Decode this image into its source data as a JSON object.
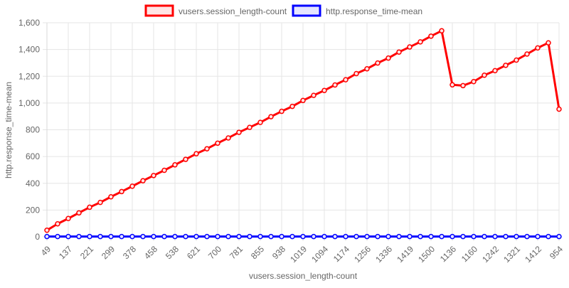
{
  "chart_data": {
    "type": "line",
    "title": "",
    "xlabel": "vusers.session_length-count",
    "ylabel": "http.response_time-mean",
    "ylim": [
      0,
      1600
    ],
    "yticks": [
      0,
      200,
      400,
      600,
      800,
      1000,
      1200,
      1400,
      1600
    ],
    "ytick_labels": [
      "0",
      "200",
      "400",
      "600",
      "800",
      "1,000",
      "1,200",
      "1,400",
      "1,600"
    ],
    "grid": true,
    "legend_position": "top-center",
    "categories": [
      "49",
      "97",
      "137",
      "179",
      "221",
      "257",
      "299",
      "338",
      "378",
      "419",
      "458",
      "497",
      "538",
      "579",
      "621",
      "658",
      "700",
      "739",
      "781",
      "818",
      "855",
      "898",
      "938",
      "975",
      "1019",
      "1057",
      "1094",
      "1135",
      "1174",
      "1220",
      "1256",
      "1299",
      "1336",
      "1381",
      "1419",
      "1457",
      "1500",
      "1540",
      "1136",
      "1130",
      "1160",
      "1208",
      "1242",
      "1282",
      "1321",
      "1366",
      "1412",
      "1450",
      "954"
    ],
    "tick_labels": [
      "49",
      "137",
      "221",
      "299",
      "378",
      "458",
      "538",
      "621",
      "700",
      "781",
      "855",
      "938",
      "1019",
      "1094",
      "1174",
      "1256",
      "1336",
      "1419",
      "1500",
      "1136",
      "1160",
      "1242",
      "1321",
      "1412",
      "954"
    ],
    "series": [
      {
        "name": "vusers.session_length-count",
        "color": "#ff0000",
        "fill": "#ffe5e5",
        "values": [
          49,
          97,
          137,
          179,
          221,
          257,
          299,
          338,
          378,
          419,
          458,
          497,
          538,
          579,
          621,
          658,
          700,
          739,
          781,
          818,
          855,
          898,
          938,
          975,
          1019,
          1057,
          1094,
          1135,
          1174,
          1220,
          1256,
          1299,
          1336,
          1381,
          1419,
          1457,
          1500,
          1540,
          1136,
          1130,
          1160,
          1208,
          1242,
          1282,
          1321,
          1366,
          1412,
          1450,
          954
        ]
      },
      {
        "name": "http.response_time-mean",
        "color": "#0000ff",
        "fill": "#e5e5ff",
        "values": [
          2,
          2,
          2,
          2,
          2,
          2,
          2,
          2,
          2,
          2,
          2,
          2,
          2,
          2,
          2,
          2,
          2,
          2,
          2,
          2,
          2,
          2,
          2,
          2,
          2,
          2,
          2,
          2,
          2,
          2,
          2,
          2,
          2,
          2,
          2,
          2,
          2,
          2,
          2,
          2,
          2,
          2,
          2,
          2,
          2,
          2,
          2,
          2,
          2
        ]
      }
    ]
  }
}
